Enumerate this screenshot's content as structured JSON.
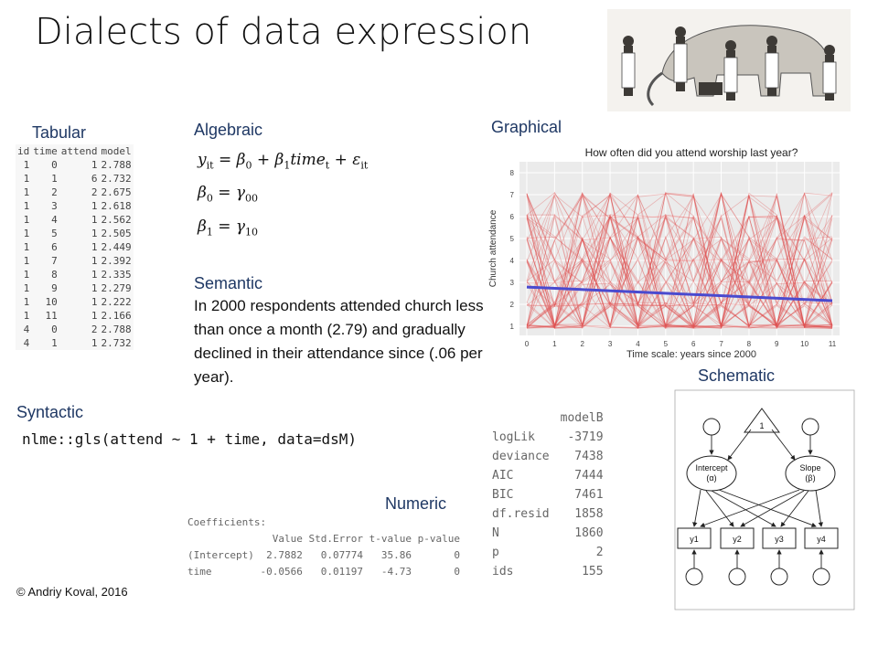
{
  "title": "Dialects of data expression",
  "tabular": {
    "heading": "Tabular",
    "columns": [
      "id",
      "time",
      "attend",
      "model"
    ],
    "rows": [
      [
        "1",
        "0",
        "1",
        "2.788"
      ],
      [
        "1",
        "1",
        "6",
        "2.732"
      ],
      [
        "1",
        "2",
        "2",
        "2.675"
      ],
      [
        "1",
        "3",
        "1",
        "2.618"
      ],
      [
        "1",
        "4",
        "1",
        "2.562"
      ],
      [
        "1",
        "5",
        "1",
        "2.505"
      ],
      [
        "1",
        "6",
        "1",
        "2.449"
      ],
      [
        "1",
        "7",
        "1",
        "2.392"
      ],
      [
        "1",
        "8",
        "1",
        "2.335"
      ],
      [
        "1",
        "9",
        "1",
        "2.279"
      ],
      [
        "1",
        "10",
        "1",
        "2.222"
      ],
      [
        "1",
        "11",
        "1",
        "2.166"
      ],
      [
        "4",
        "0",
        "2",
        "2.788"
      ],
      [
        "4",
        "1",
        "1",
        "2.732"
      ]
    ]
  },
  "algebraic": {
    "heading": "Algebraic"
  },
  "semantic": {
    "heading": "Semantic",
    "text": "In 2000 respondents attended church less than once a month (2.79) and gradually declined in their attendance since (.06 per year)."
  },
  "syntactic": {
    "heading": "Syntactic",
    "code": "nlme::gls(attend ~ 1 + time, data=dsM)"
  },
  "numeric": {
    "heading": "Numeric",
    "coef_title": "Coefficients:",
    "coef_header": "              Value Std.Error t-value p-value",
    "coef_rows": [
      "(Intercept)  2.7882   0.07774   35.86       0",
      "time        -0.0566   0.01197   -4.73       0"
    ]
  },
  "fit": {
    "header": "modelB",
    "rows": [
      [
        "logLik",
        "-3719"
      ],
      [
        "deviance",
        "7438"
      ],
      [
        "AIC",
        "7444"
      ],
      [
        "BIC",
        "7461"
      ],
      [
        "df.resid",
        "1858"
      ],
      [
        "N",
        "1860"
      ],
      [
        "p",
        "2"
      ],
      [
        "ids",
        "155"
      ]
    ]
  },
  "graphical": {
    "heading": "Graphical",
    "chart_title": "How often did you attend worship last year?",
    "xlabel": "Time scale: years since 2000",
    "ylabel": "Church attendance"
  },
  "schematic": {
    "heading": "Schematic",
    "intercept_label": "Intercept",
    "intercept_sym": "(α)",
    "slope_label": "Slope",
    "slope_sym": "(β)",
    "indicators": [
      "y1",
      "y2",
      "y3",
      "y4"
    ],
    "triangle_label": "1"
  },
  "copyright": "© Andriy Koval, 2016",
  "chart_data": {
    "type": "line",
    "title": "How often did you attend worship last year?",
    "xlabel": "Time scale: years since 2000",
    "ylabel": "Church attendance",
    "x_ticks": [
      0,
      1,
      2,
      3,
      4,
      5,
      6,
      7,
      8,
      9,
      10,
      11
    ],
    "y_ticks": [
      1,
      2,
      3,
      4,
      5,
      6,
      7,
      8
    ],
    "xlim": [
      0,
      11
    ],
    "ylim": [
      1,
      8
    ],
    "series": [
      {
        "x": [
          0,
          11
        ],
        "y": [
          2.788,
          2.166
        ]
      }
    ]
  }
}
